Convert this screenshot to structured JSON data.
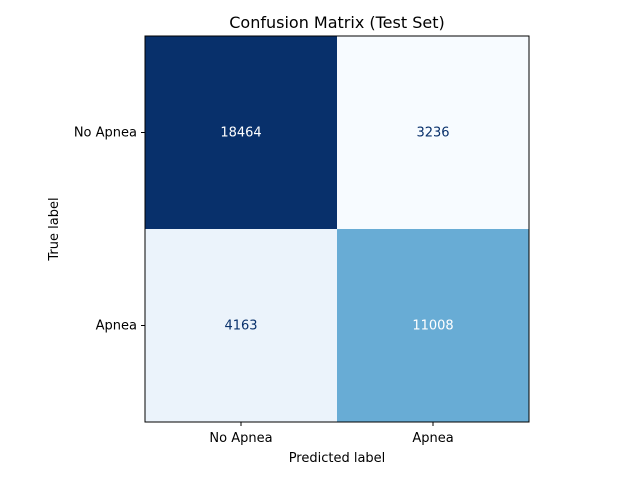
{
  "chart_data": {
    "type": "heatmap",
    "title": "Confusion Matrix (Test Set)",
    "xlabel": "Predicted label",
    "ylabel": "True label",
    "x_categories": [
      "No Apnea",
      "Apnea"
    ],
    "y_categories": [
      "No Apnea",
      "Apnea"
    ],
    "values": [
      [
        18464,
        3236
      ],
      [
        4163,
        11008
      ]
    ],
    "colormap": "Blues",
    "colorbar": false,
    "grid": false
  }
}
